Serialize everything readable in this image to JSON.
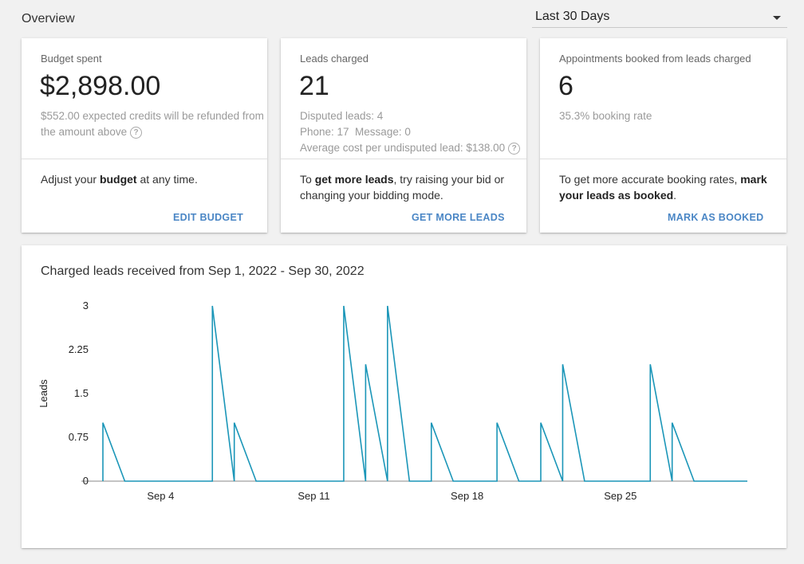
{
  "header": {
    "title": "Overview",
    "date_range": "Last 30 Days",
    "date_range_icon": "caret-down-icon"
  },
  "cards": {
    "budget": {
      "label": "Budget spent",
      "value": "$2,898.00",
      "sub_line1": "$552.00 expected credits will be refunded from",
      "sub_line2": "the amount above",
      "help_glyph": "?",
      "bottom_pre": "Adjust your ",
      "bottom_bold": "budget",
      "bottom_post": " at any time.",
      "action": "EDIT BUDGET"
    },
    "leads": {
      "label": "Leads charged",
      "value": "21",
      "disputed": "Disputed leads: 4",
      "phone_message": "Phone: 17  Message: 0",
      "avg_cost": "Average cost per undisputed lead: $138.00",
      "help_glyph": "?",
      "bottom_pre": "To ",
      "bottom_bold": "get more leads",
      "bottom_post": ", try raising your bid or changing your bidding mode.",
      "action": "GET MORE LEADS"
    },
    "appointments": {
      "label": "Appointments booked from leads charged",
      "value": "6",
      "sub": "35.3% booking rate",
      "bottom_pre": "To get more accurate booking rates, ",
      "bottom_bold": "mark your leads as booked",
      "bottom_post": ".",
      "action": "MARK AS BOOKED"
    }
  },
  "chart": {
    "title": "Charged leads received from Sep 1, 2022 - Sep 30, 2022"
  },
  "chart_data": {
    "type": "line",
    "title": "Charged leads received from Sep 1, 2022 - Sep 30, 2022",
    "xlabel": "",
    "ylabel": "Leads",
    "x": [
      "Sep 1",
      "Sep 2",
      "Sep 3",
      "Sep 4",
      "Sep 5",
      "Sep 6",
      "Sep 7",
      "Sep 8",
      "Sep 9",
      "Sep 10",
      "Sep 11",
      "Sep 12",
      "Sep 13",
      "Sep 14",
      "Sep 15",
      "Sep 16",
      "Sep 17",
      "Sep 18",
      "Sep 19",
      "Sep 20",
      "Sep 21",
      "Sep 22",
      "Sep 23",
      "Sep 24",
      "Sep 25",
      "Sep 26",
      "Sep 27",
      "Sep 28",
      "Sep 29",
      "Sep 30"
    ],
    "series": [
      {
        "values": [
          1,
          0,
          0,
          0,
          0,
          3,
          1,
          0,
          0,
          0,
          0,
          3,
          2,
          3,
          0,
          1,
          0,
          0,
          1,
          0,
          1,
          2,
          0,
          0,
          0,
          2,
          1,
          0,
          0,
          0
        ]
      }
    ],
    "ylim": [
      0,
      3
    ],
    "yticks": [
      "0",
      "0.75",
      "1.5",
      "2.25",
      "3"
    ],
    "xticks": [
      "Sep 4",
      "Sep 11",
      "Sep 18",
      "Sep 25"
    ],
    "color": "#1b96b8",
    "grid": false
  }
}
